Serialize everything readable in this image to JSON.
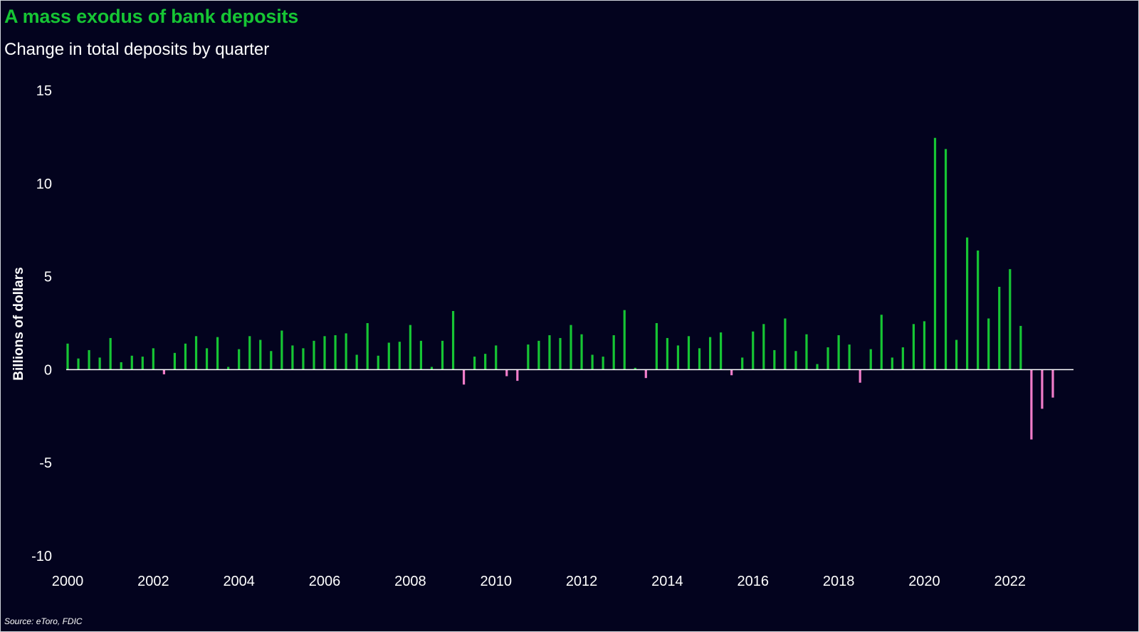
{
  "header": {
    "title": "A mass exodus of bank deposits",
    "subtitle": "Change in total deposits by quarter"
  },
  "footer": {
    "source": "Source: eToro, FDIC"
  },
  "colors": {
    "background": "#03031e",
    "positive": "#16c534",
    "negative": "#f07cc9",
    "title": "#16c534",
    "axis": "#ffffff"
  },
  "chart_data": {
    "type": "bar",
    "title": "A mass exodus of bank deposits",
    "subtitle": "Change in total deposits by quarter",
    "xlabel": "",
    "ylabel": "Billions of dollars",
    "ylim": [
      -10,
      15
    ],
    "yticks": [
      15,
      10,
      5,
      0,
      -5,
      -10
    ],
    "xlim": [
      2000,
      2023.25
    ],
    "xticks": [
      2000,
      2002,
      2004,
      2006,
      2008,
      2010,
      2012,
      2014,
      2016,
      2018,
      2020,
      2022
    ],
    "grid": false,
    "legend": "none",
    "x": [
      2000.0,
      2000.25,
      2000.5,
      2000.75,
      2001.0,
      2001.25,
      2001.5,
      2001.75,
      2002.0,
      2002.25,
      2002.5,
      2002.75,
      2003.0,
      2003.25,
      2003.5,
      2003.75,
      2004.0,
      2004.25,
      2004.5,
      2004.75,
      2005.0,
      2005.25,
      2005.5,
      2005.75,
      2006.0,
      2006.25,
      2006.5,
      2006.75,
      2007.0,
      2007.25,
      2007.5,
      2007.75,
      2008.0,
      2008.25,
      2008.5,
      2008.75,
      2009.0,
      2009.25,
      2009.5,
      2009.75,
      2010.0,
      2010.25,
      2010.5,
      2010.75,
      2011.0,
      2011.25,
      2011.5,
      2011.75,
      2012.0,
      2012.25,
      2012.5,
      2012.75,
      2013.0,
      2013.25,
      2013.5,
      2013.75,
      2014.0,
      2014.25,
      2014.5,
      2014.75,
      2015.0,
      2015.25,
      2015.5,
      2015.75,
      2016.0,
      2016.25,
      2016.5,
      2016.75,
      2017.0,
      2017.25,
      2017.5,
      2017.75,
      2018.0,
      2018.25,
      2018.5,
      2018.75,
      2019.0,
      2019.25,
      2019.5,
      2019.75,
      2020.0,
      2020.25,
      2020.5,
      2020.75,
      2021.0,
      2021.25,
      2021.5,
      2021.75,
      2022.0,
      2022.25,
      2022.5,
      2022.75,
      2023.0
    ],
    "values": [
      1.4,
      0.6,
      1.05,
      0.65,
      1.7,
      0.4,
      0.75,
      0.7,
      1.15,
      -0.25,
      0.9,
      1.4,
      1.8,
      1.15,
      1.75,
      0.15,
      1.1,
      1.8,
      1.6,
      1.0,
      2.1,
      1.3,
      1.15,
      1.55,
      1.8,
      1.85,
      1.95,
      0.8,
      2.5,
      0.75,
      1.45,
      1.5,
      2.4,
      1.55,
      0.15,
      1.55,
      3.15,
      -0.8,
      0.7,
      0.85,
      1.3,
      -0.35,
      -0.6,
      1.35,
      1.55,
      1.85,
      1.7,
      2.4,
      1.9,
      0.8,
      0.7,
      1.85,
      3.2,
      0.1,
      -0.45,
      2.5,
      1.7,
      1.3,
      1.8,
      1.15,
      1.75,
      2.0,
      -0.3,
      0.65,
      2.05,
      2.45,
      1.05,
      2.75,
      1.0,
      1.9,
      0.3,
      1.2,
      1.85,
      1.35,
      -0.7,
      1.1,
      2.95,
      0.65,
      1.2,
      2.45,
      2.6,
      12.45,
      11.85,
      1.6,
      7.1,
      6.4,
      2.75,
      4.45,
      5.4,
      2.35,
      -3.75,
      -2.1,
      -1.5
    ]
  }
}
